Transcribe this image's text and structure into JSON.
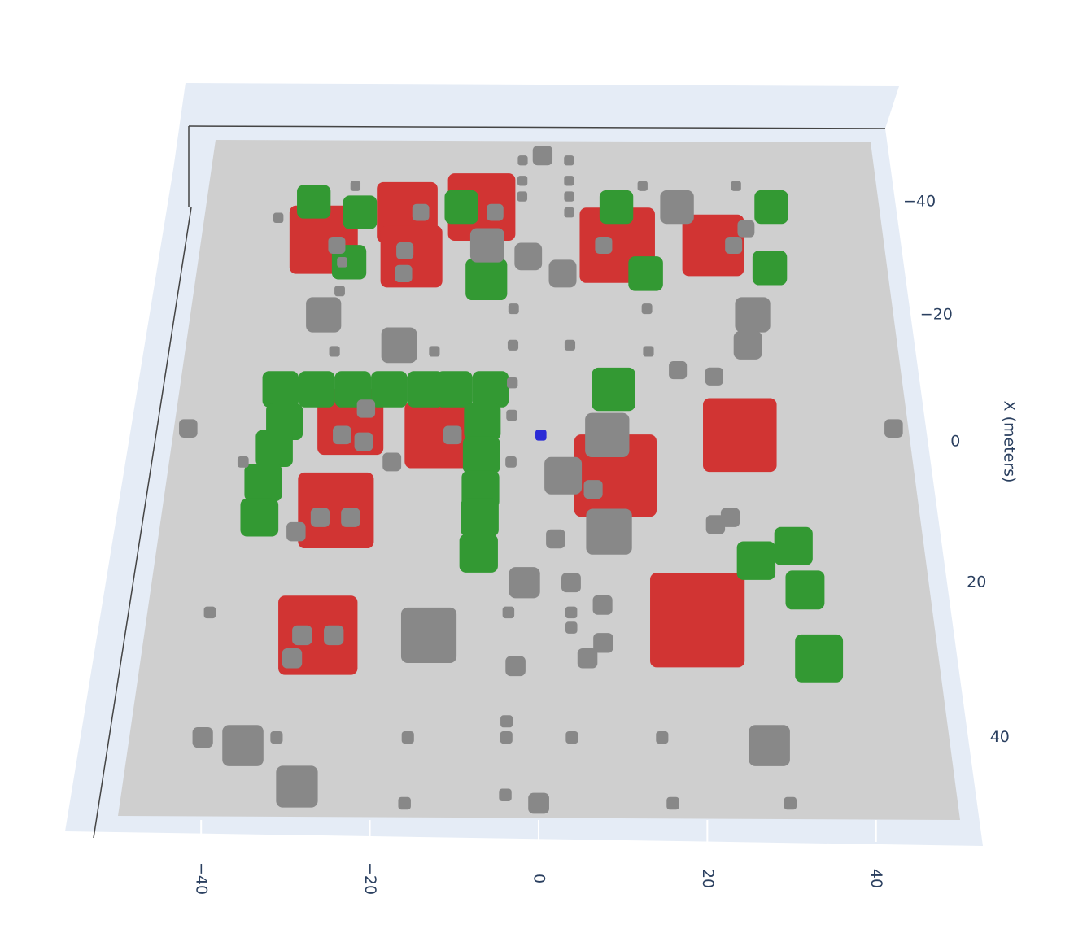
{
  "chart_data": {
    "type": "scatter3d",
    "x_axis_title": "X (meters)",
    "xlim": [
      -50,
      50
    ],
    "ylim": [
      -50,
      50
    ],
    "xticks": [
      {
        "value": -40,
        "label": "−40"
      },
      {
        "value": -20,
        "label": "−20"
      },
      0,
      20,
      40
    ],
    "yticks": [
      {
        "value": -40,
        "label": "−40"
      },
      {
        "value": -20,
        "label": "−20"
      },
      0,
      20,
      40
    ],
    "series": [
      {
        "color": "#d13433",
        "x": [
          -33,
          -38,
          -30,
          -39,
          -32,
          -32,
          -3,
          10,
          -1,
          5,
          -1,
          27,
          25
        ],
        "y": [
          -32,
          -20,
          -19,
          -9,
          11,
          25,
          -26,
          -27,
          -14,
          10,
          27,
          -28,
          20
        ],
        "sizes": [
          10,
          9,
          9,
          10,
          11,
          9,
          9,
          10,
          9,
          11,
          10,
          10,
          12
        ]
      },
      {
        "color": "#339933",
        "x": [
          -40,
          -38,
          -39,
          -39,
          -39,
          -29,
          -26,
          -27,
          -28,
          -8,
          -8,
          -8,
          -8,
          -8,
          -8,
          -8,
          -8,
          -3,
          1,
          6,
          11,
          -3,
          2,
          7,
          11,
          16,
          15,
          17,
          21,
          30
        ],
        "y": [
          -34,
          -27,
          -12,
          11,
          34,
          -28,
          -8,
          15,
          33,
          -36,
          -31,
          -26,
          -21,
          -16,
          -12,
          -7,
          10,
          -35,
          -36,
          -37,
          -37,
          -8,
          -8,
          -8,
          -8,
          -8,
          33,
          28,
          34,
          35
        ],
        "sizes": [
          5,
          5,
          5,
          5,
          5,
          5,
          6,
          5,
          5,
          5,
          5,
          5,
          5,
          5,
          5,
          5,
          6,
          5,
          5,
          5,
          5,
          5,
          5,
          5,
          5,
          5,
          5,
          5,
          5,
          6
        ]
      },
      {
        "color": "#888888",
        "x": [
          -49,
          -39,
          -32,
          -30,
          -27,
          -20,
          -15,
          -20,
          -15,
          -1,
          5,
          13,
          20,
          27,
          41,
          46,
          41,
          -32,
          -32,
          -35,
          -38,
          -38,
          -32,
          -31,
          -27,
          -11,
          -10,
          -5,
          -1,
          0,
          3,
          -1,
          6,
          7,
          11,
          12,
          14,
          11,
          11,
          13,
          27,
          30,
          27,
          20,
          23,
          28,
          31,
          30,
          -2,
          -2,
          48,
          40
        ],
        "y": [
          0,
          20,
          -8,
          -2,
          3,
          -31,
          -20,
          30,
          29,
          9,
          3,
          9,
          -2,
          -14,
          -36,
          -29,
          28,
          9,
          28,
          30,
          -7,
          -18,
          -30,
          -20,
          -20,
          19,
          24,
          -24,
          -27,
          -24,
          -20,
          -12,
          3,
          7,
          25,
          23,
          2,
          -29,
          -25,
          -32,
          -30,
          -31,
          -26,
          4,
          8,
          8,
          -3,
          6,
          -48,
          48,
          0,
          -41
        ],
        "sizes": [
          3,
          5,
          5,
          4,
          4,
          5,
          5,
          5,
          4,
          6,
          5,
          6,
          4,
          7,
          5,
          5,
          5,
          2.5,
          2.5,
          2.5,
          2.5,
          2.5,
          2.5,
          2.5,
          2.5,
          2.5,
          2.5,
          2.5,
          2.5,
          2.5,
          2.5,
          2.5,
          2.5,
          2.5,
          2.5,
          2.5,
          2.5,
          2.5,
          2.5,
          2.5,
          2.5,
          2.5,
          2.5,
          2.5,
          2.5,
          2.5,
          2.5,
          2.5,
          2.5,
          2.5,
          2.5,
          2.5
        ]
      },
      {
        "color": "#888888",
        "x": [
          -48,
          -48,
          -44,
          -44,
          -41,
          -41,
          -38,
          -37,
          -43,
          -29,
          -24,
          -14,
          -14,
          -21,
          -15,
          -15,
          -9,
          -4,
          3,
          -21,
          -14,
          -43,
          -43,
          3,
          24,
          24,
          24,
          26,
          38,
          40,
          40,
          40,
          40,
          40,
          40,
          47,
          48,
          48,
          48
        ],
        "y": [
          -3,
          4,
          -3,
          4,
          -3,
          4,
          4,
          -39,
          -28,
          -29,
          -29,
          -29,
          -15,
          -4,
          -4,
          4,
          -4,
          -4,
          -4,
          15,
          15,
          15,
          29,
          -40,
          -42,
          -4,
          4,
          4,
          -4,
          -4,
          4,
          -32,
          -16,
          15,
          29,
          -4,
          -16,
          16,
          30
        ],
        "sizes": [
          1.5,
          1.5,
          1.5,
          1.5,
          1.5,
          1.5,
          1.5,
          1.5,
          1.5,
          1.5,
          1.5,
          1.5,
          1.5,
          1.5,
          1.5,
          1.5,
          1.5,
          1.5,
          1.5,
          1.5,
          1.5,
          1.5,
          1.5,
          1.5,
          1.5,
          1.5,
          1.5,
          1.5,
          1.5,
          1.5,
          1.5,
          1.5,
          1.5,
          1.5,
          1.5,
          1.5,
          1.5,
          1.5,
          1.5
        ]
      },
      {
        "color": "#2b2bd6",
        "x": [
          -1
        ],
        "y": [
          0
        ],
        "sizes": [
          1.5
        ]
      }
    ]
  }
}
